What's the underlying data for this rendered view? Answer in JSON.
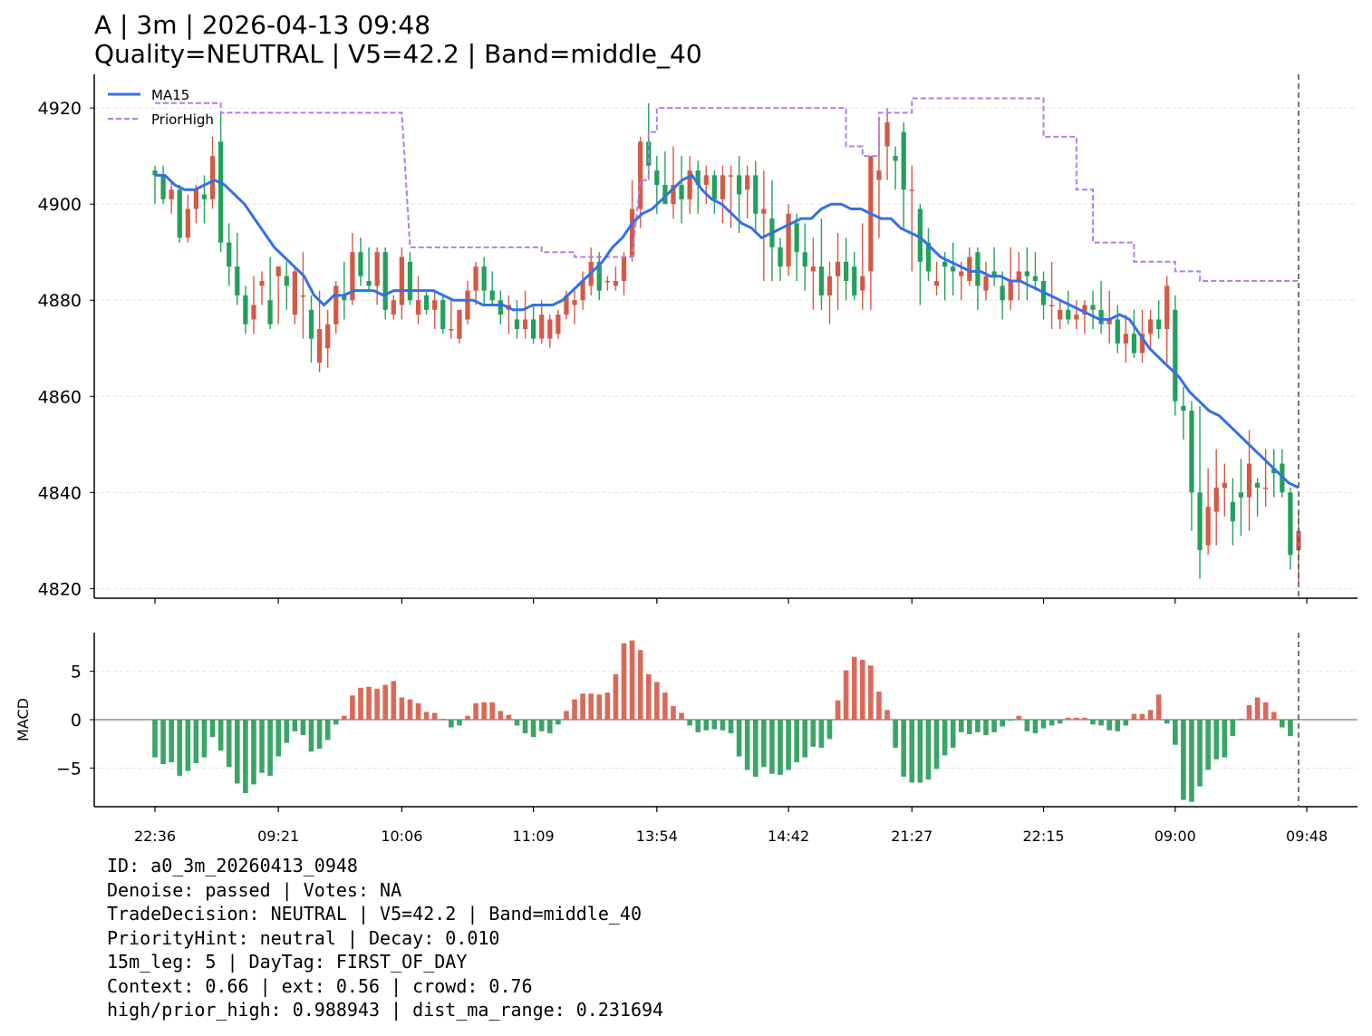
{
  "title": {
    "line1": "A | 3m | 2026-04-13 09:48",
    "line2": "Quality=NEUTRAL | V5=42.2 | Band=middle_40"
  },
  "info_lines": [
    "ID: a0_3m_20260413_0948",
    "Denoise: passed | Votes: NA",
    "TradeDecision: NEUTRAL | V5=42.2 | Band=middle_40",
    "PriorityHint: neutral | Decay: 0.010",
    "15m_leg: 5 | DayTag: FIRST_OF_DAY",
    "Context: 0.66 | ext: 0.56 | crowd: 0.76",
    "high/prior_high: 0.988943 | dist_ma_range: 0.231694"
  ],
  "colors": {
    "up": "#d45a45",
    "down": "#23a05a",
    "ma": "#3370e8",
    "prior_high": "#b27ee6",
    "macd_pos": "#d96a5a",
    "macd_neg": "#3aa566",
    "grid": "#e4e4e4",
    "vline": "#555555"
  },
  "chart_data": [
    {
      "type": "candlestick",
      "ylim": [
        4818,
        4927
      ],
      "yticks": [
        4820,
        4840,
        4860,
        4880,
        4900,
        4920
      ],
      "grid": "horizontal dashed",
      "legend": {
        "placement": "top-left",
        "entries": [
          "MA15",
          "PriorHigh"
        ]
      },
      "x_tick_labels": [
        "22:36",
        "09:21",
        "10:06",
        "11:09",
        "13:54",
        "14:42",
        "21:27",
        "22:15",
        "09:00",
        "09:48"
      ],
      "x_tick_index": [
        0,
        15,
        30,
        46,
        61,
        77,
        92,
        108,
        124,
        140
      ],
      "ohlc": [
        [
          4907,
          4908,
          4900,
          4906
        ],
        [
          4906,
          4908,
          4900,
          4901
        ],
        [
          4901,
          4905,
          4898,
          4903
        ],
        [
          4903,
          4904,
          4892,
          4893
        ],
        [
          4893,
          4902,
          4892,
          4899
        ],
        [
          4899,
          4904,
          4896,
          4903
        ],
        [
          4902,
          4906,
          4896,
          4901
        ],
        [
          4901,
          4914,
          4899,
          4910
        ],
        [
          4913,
          4919,
          4890,
          4892
        ],
        [
          4892,
          4896,
          4883,
          4887
        ],
        [
          4887,
          4894,
          4879,
          4881
        ],
        [
          4881,
          4883,
          4873,
          4875
        ],
        [
          4876,
          4885,
          4873,
          4879
        ],
        [
          4883,
          4886,
          4879,
          4884
        ],
        [
          4880,
          4889,
          4874,
          4875
        ],
        [
          4885,
          4887,
          4875,
          4887
        ],
        [
          4885,
          4888,
          4878,
          4883
        ],
        [
          4877,
          4887,
          4875,
          4886
        ],
        [
          4881,
          4890,
          4872,
          4881
        ],
        [
          4878,
          4881,
          4867,
          4872
        ],
        [
          4867,
          4882,
          4865,
          4874
        ],
        [
          4870,
          4878,
          4866,
          4875
        ],
        [
          4875,
          4884,
          4873,
          4883
        ],
        [
          4881,
          4888,
          4876,
          4880
        ],
        [
          4880,
          4894,
          4879,
          4890
        ],
        [
          4890,
          4893,
          4883,
          4885
        ],
        [
          4884,
          4891,
          4882,
          4883
        ],
        [
          4883,
          4891,
          4879,
          4890
        ],
        [
          4890,
          4891,
          4876,
          4878
        ],
        [
          4877,
          4881,
          4876,
          4880
        ],
        [
          4879,
          4891,
          4876,
          4889
        ],
        [
          4888,
          4890,
          4879,
          4880
        ],
        [
          4877,
          4885,
          4875,
          4880
        ],
        [
          4881,
          4882,
          4877,
          4878
        ],
        [
          4878,
          4882,
          4874,
          4880
        ],
        [
          4880,
          4881,
          4873,
          4874
        ],
        [
          4874,
          4880,
          4872,
          4874
        ],
        [
          4872,
          4878,
          4871,
          4878
        ],
        [
          4876,
          4884,
          4875,
          4882
        ],
        [
          4882,
          4888,
          4879,
          4887
        ],
        [
          4887,
          4889,
          4879,
          4882
        ],
        [
          4882,
          4886,
          4879,
          4880
        ],
        [
          4880,
          4882,
          4875,
          4877
        ],
        [
          4878,
          4881,
          4873,
          4879
        ],
        [
          4876,
          4880,
          4872,
          4874
        ],
        [
          4874,
          4882,
          4872,
          4876
        ],
        [
          4876,
          4879,
          4871,
          4872
        ],
        [
          4872,
          4880,
          4871,
          4877
        ],
        [
          4872,
          4877,
          4870,
          4876
        ],
        [
          4873,
          4878,
          4872,
          4877
        ],
        [
          4877,
          4882,
          4876,
          4881
        ],
        [
          4879,
          4882,
          4875,
          4880
        ],
        [
          4880,
          4886,
          4878,
          4884
        ],
        [
          4883,
          4891,
          4881,
          4888
        ],
        [
          4888,
          4890,
          4880,
          4882
        ],
        [
          4884,
          4885,
          4882,
          4884
        ],
        [
          4883,
          4887,
          4882,
          4884
        ],
        [
          4884,
          4890,
          4881,
          4889
        ],
        [
          4889,
          4905,
          4888,
          4899
        ],
        [
          4899,
          4914,
          4895,
          4913
        ],
        [
          4913,
          4921,
          4905,
          4908
        ],
        [
          4907,
          4910,
          4898,
          4904
        ],
        [
          4904,
          4911,
          4900,
          4900
        ],
        [
          4900,
          4912,
          4897,
          4904
        ],
        [
          4904,
          4910,
          4896,
          4901
        ],
        [
          4901,
          4910,
          4898,
          4907
        ],
        [
          4907,
          4909,
          4898,
          4904
        ],
        [
          4904,
          4908,
          4900,
          4906
        ],
        [
          4906,
          4907,
          4898,
          4901
        ],
        [
          4901,
          4908,
          4896,
          4906
        ],
        [
          4906,
          4908,
          4895,
          4906
        ],
        [
          4906,
          4910,
          4894,
          4902
        ],
        [
          4903,
          4908,
          4897,
          4906
        ],
        [
          4906,
          4909,
          4894,
          4898
        ],
        [
          4898,
          4907,
          4884,
          4899
        ],
        [
          4897,
          4905,
          4884,
          4891
        ],
        [
          4891,
          4893,
          4884,
          4887
        ],
        [
          4887,
          4900,
          4885,
          4898
        ],
        [
          4896,
          4898,
          4884,
          4890
        ],
        [
          4890,
          4896,
          4882,
          4887
        ],
        [
          4886,
          4893,
          4878,
          4887
        ],
        [
          4887,
          4897,
          4878,
          4881
        ],
        [
          4881,
          4888,
          4875,
          4885
        ],
        [
          4885,
          4894,
          4878,
          4888
        ],
        [
          4888,
          4893,
          4880,
          4884
        ],
        [
          4887,
          4890,
          4880,
          4881
        ],
        [
          4882,
          4896,
          4878,
          4885
        ],
        [
          4886,
          4910,
          4878,
          4910
        ],
        [
          4905,
          4917,
          4893,
          4907
        ],
        [
          4912,
          4920,
          4905,
          4917
        ],
        [
          4910,
          4912,
          4903,
          4909
        ],
        [
          4915,
          4917,
          4895,
          4903
        ],
        [
          4903,
          4908,
          4886,
          4903
        ],
        [
          4899,
          4900,
          4879,
          4888
        ],
        [
          4892,
          4895,
          4884,
          4886
        ],
        [
          4883,
          4888,
          4881,
          4884
        ],
        [
          4888,
          4890,
          4880,
          4887
        ],
        [
          4887,
          4892,
          4881,
          4886
        ],
        [
          4885,
          4888,
          4880,
          4886
        ],
        [
          4884,
          4891,
          4883,
          4889
        ],
        [
          4890,
          4891,
          4878,
          4883
        ],
        [
          4882,
          4888,
          4880,
          4885
        ],
        [
          4886,
          4891,
          4883,
          4885
        ],
        [
          4883,
          4886,
          4876,
          4880
        ],
        [
          4880,
          4891,
          4878,
          4884
        ],
        [
          4884,
          4890,
          4880,
          4886
        ],
        [
          4886,
          4891,
          4880,
          4885
        ],
        [
          4885,
          4890,
          4882,
          4884
        ],
        [
          4884,
          4886,
          4876,
          4879
        ],
        [
          4879,
          4888,
          4874,
          4879
        ],
        [
          4876,
          4880,
          4874,
          4878
        ],
        [
          4878,
          4882,
          4875,
          4876
        ],
        [
          4876,
          4880,
          4874,
          4877
        ],
        [
          4877,
          4880,
          4873,
          4879
        ],
        [
          4879,
          4882,
          4874,
          4878
        ],
        [
          4878,
          4884,
          4873,
          4875
        ],
        [
          4875,
          4882,
          4871,
          4876
        ],
        [
          4876,
          4879,
          4869,
          4871
        ],
        [
          4871,
          4877,
          4867,
          4873
        ],
        [
          4873,
          4878,
          4868,
          4869
        ],
        [
          4869,
          4878,
          4867,
          4873
        ],
        [
          4873,
          4878,
          4870,
          4876
        ],
        [
          4876,
          4880,
          4872,
          4874
        ],
        [
          4874,
          4885,
          4867,
          4883
        ],
        [
          4878,
          4881,
          4856,
          4859
        ],
        [
          4858,
          4862,
          4851,
          4857
        ],
        [
          4857,
          4859,
          4832,
          4840
        ],
        [
          4840,
          4858,
          4822,
          4828
        ],
        [
          4829,
          4845,
          4827,
          4837
        ],
        [
          4836,
          4849,
          4829,
          4841
        ],
        [
          4841,
          4846,
          4835,
          4842
        ],
        [
          4838,
          4843,
          4829,
          4834
        ],
        [
          4840,
          4847,
          4831,
          4839
        ],
        [
          4839,
          4853,
          4832,
          4846
        ],
        [
          4842,
          4843,
          4835,
          4841
        ],
        [
          4841,
          4849,
          4837,
          4841
        ],
        [
          4845,
          4849,
          4839,
          4844
        ],
        [
          4846,
          4849,
          4839,
          4840
        ],
        [
          4840,
          4841,
          4824,
          4827
        ],
        [
          4828,
          4836,
          4821,
          4832
        ]
      ],
      "series": [
        {
          "name": "MA15",
          "values": [
            4906,
            4906,
            4904,
            4903,
            4903,
            4904,
            4905,
            4904,
            4902,
            4900,
            4897,
            4894,
            4891,
            4889,
            4887,
            4885,
            4881,
            4879,
            4881,
            4881,
            4882,
            4882,
            4882,
            4881,
            4882,
            4882,
            4882,
            4882,
            4882,
            4881,
            4880,
            4880,
            4880,
            4879,
            4879,
            4879,
            4878,
            4878,
            4879,
            4879,
            4879,
            4880,
            4882,
            4884,
            4886,
            4888,
            4891,
            4893,
            4896,
            4898,
            4899,
            4901,
            4903,
            4905,
            4906,
            4903,
            4901,
            4900,
            4898,
            4896,
            4895,
            4893,
            4894,
            4895,
            4896,
            4897,
            4897,
            4899,
            4900,
            4900,
            4899,
            4899,
            4898,
            4897,
            4897,
            4895,
            4894,
            4893,
            4891,
            4889,
            4888,
            4887,
            4886,
            4886,
            4885,
            4885,
            4884,
            4884,
            4883,
            4882,
            4881,
            4880,
            4879,
            4878,
            4877,
            4876,
            4876,
            4877,
            4876,
            4873,
            4870,
            4868,
            4866,
            4864,
            4861,
            4859,
            4857,
            4856,
            4854,
            4852,
            4850,
            4848,
            4846,
            4844,
            4842,
            4841
          ],
          "offset": 0
        },
        {
          "name": "PriorHigh"
        }
      ]
    },
    {
      "type": "bar",
      "ylabel": "MACD",
      "ylim": [
        -9,
        9
      ],
      "yticks": [
        -5,
        0,
        5
      ],
      "values": [
        -3.9,
        -4.6,
        -4.4,
        -5.8,
        -5.3,
        -4.5,
        -3.9,
        -1.8,
        -3.2,
        -4.9,
        -6.6,
        -7.6,
        -6.7,
        -5.5,
        -5.8,
        -3.8,
        -2.4,
        -1.2,
        -1.6,
        -3.3,
        -3.0,
        -2.1,
        -0.5,
        0.4,
        2.5,
        3.3,
        3.4,
        3.2,
        3.6,
        4.0,
        2.3,
        2.1,
        1.7,
        0.8,
        0.7,
        0.1,
        -0.8,
        -0.6,
        0.4,
        1.7,
        1.8,
        1.8,
        0.9,
        0.5,
        -0.6,
        -1.4,
        -1.8,
        -1.2,
        -1.4,
        -0.5,
        0.9,
        2.1,
        2.7,
        2.7,
        2.6,
        2.8,
        4.7,
        7.9,
        8.2,
        7.2,
        4.7,
        3.9,
        2.8,
        1.4,
        0.7,
        -0.6,
        -1.3,
        -1.1,
        -1.0,
        -1.1,
        -1.4,
        -3.8,
        -5.2,
        -5.9,
        -4.9,
        -5.6,
        -5.7,
        -5.2,
        -4.4,
        -3.9,
        -2.8,
        -2.9,
        -2.0,
        2.0,
        5.1,
        6.5,
        6.2,
        5.6,
        2.9,
        1.0,
        -2.9,
        -5.9,
        -6.5,
        -6.5,
        -6.2,
        -5.1,
        -3.7,
        -2.9,
        -1.3,
        -1.5,
        -1.3,
        -1.6,
        -1.3,
        -0.7,
        -0.1,
        0.4,
        -1.2,
        -1.4,
        -0.9,
        -0.6,
        -0.4,
        0.2,
        0.2,
        0.2,
        -0.5,
        -0.6,
        -1.1,
        -1.2,
        -0.6,
        0.6,
        0.6,
        1.0,
        2.6,
        -0.4,
        -2.6,
        -8.3,
        -8.5,
        -6.9,
        -5.2,
        -4.1,
        -3.9,
        -1.7,
        0.1,
        1.5,
        2.3,
        1.8,
        0.8,
        -0.8,
        -1.7
      ]
    }
  ]
}
